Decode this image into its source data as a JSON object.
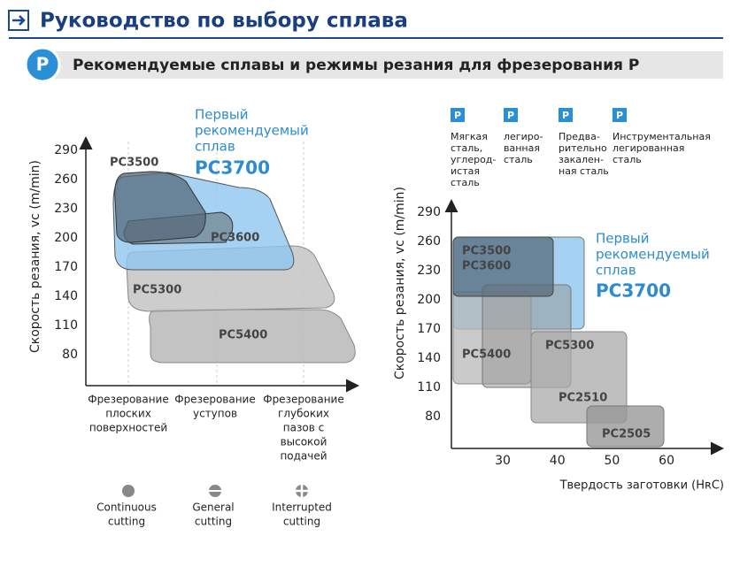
{
  "header": {
    "title": "Руководство по выбору сплава",
    "badge": "P",
    "subtitle": "Рекомендуемые сплавы и режимы резания для фрезерования P"
  },
  "left_chart": {
    "y_label": "Скорость резания, vc (m/min)",
    "yticks": [
      290,
      260,
      230,
      200,
      170,
      140,
      110,
      80
    ],
    "categories": [
      [
        "Фрезерование",
        "плоских",
        "поверхностей"
      ],
      [
        "Фрезерование",
        "уступов"
      ],
      [
        "Фрезерование",
        "глубоких",
        "пазов с",
        "высокой",
        "подачей"
      ]
    ],
    "regions": [
      "PC3500",
      "PC3600",
      "PC5300",
      "PC5400"
    ],
    "annotation": [
      "Первый",
      "рекомендуемый",
      "сплав"
    ],
    "highlight": "PC3700",
    "cutting": [
      [
        "Continuous",
        "cutting"
      ],
      [
        "General",
        "cutting"
      ],
      [
        "Interrupted",
        "cutting"
      ]
    ]
  },
  "right_chart": {
    "y_label": "Скорость резания, vc (m/min)",
    "x_label": "Твердость заготовки (HʀC)",
    "yticks": [
      290,
      260,
      230,
      200,
      170,
      140,
      110,
      80
    ],
    "xticks": [
      30,
      40,
      50,
      60
    ],
    "groups": [
      {
        "badge": "P",
        "lines": [
          "Мягкая",
          "сталь,",
          "углерод-",
          "истая",
          "сталь"
        ]
      },
      {
        "badge": "P",
        "lines": [
          "легиро-",
          "ванная",
          "сталь"
        ]
      },
      {
        "badge": "P",
        "lines": [
          "Предва-",
          "рительно",
          "закален-",
          "ная сталь"
        ]
      },
      {
        "badge": "P",
        "lines": [
          "Инструментальная",
          "легированная",
          "сталь"
        ]
      }
    ],
    "regions": [
      "PC3500",
      "PC3600",
      "PC5400",
      "PC5300",
      "PC2510",
      "PC2505"
    ],
    "annotation": [
      "Первый",
      "рекомендуемый",
      "сплав"
    ],
    "highlight": "PC3700"
  }
}
